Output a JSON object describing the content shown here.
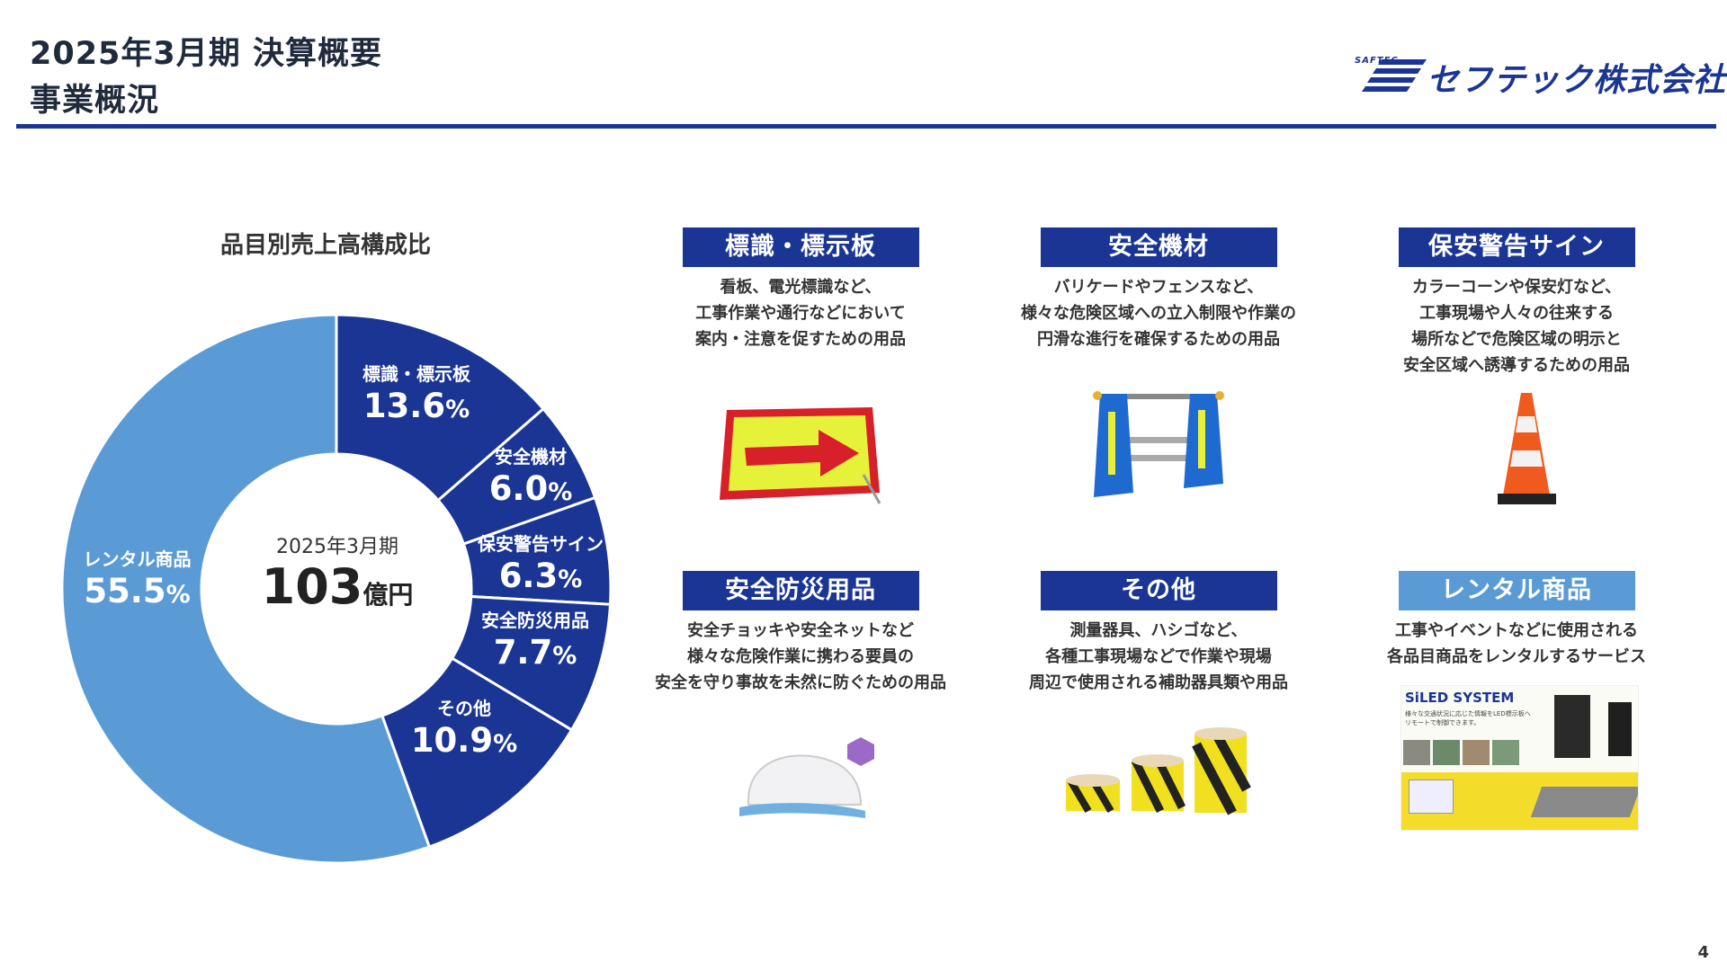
{
  "header": {
    "title_line1": "2025年3月期 決算概要",
    "title_line2": "事業概況",
    "logo_small": "SAFTEC",
    "logo_name": "セフテック株式会社"
  },
  "chart": {
    "title": "品目別売上高構成比",
    "center_period": "2025年3月期",
    "center_amount": "103",
    "center_unit": "億円",
    "labels": [
      {
        "name": "標識・標示板",
        "value": "13.6",
        "unit": "%"
      },
      {
        "name": "安全機材",
        "value": "6.0",
        "unit": "%"
      },
      {
        "name": "保安警告サイン",
        "value": "6.3",
        "unit": "%"
      },
      {
        "name": "安全防災用品",
        "value": "7.7",
        "unit": "%"
      },
      {
        "name": "その他",
        "value": "10.9",
        "unit": "%"
      },
      {
        "name": "レンタル商品",
        "value": "55.5",
        "unit": "%"
      }
    ]
  },
  "chart_data": {
    "type": "pie",
    "title": "品目別売上高構成比",
    "categories": [
      "標識・標示板",
      "安全機材",
      "保安警告サイン",
      "安全防災用品",
      "その他",
      "レンタル商品"
    ],
    "values": [
      13.6,
      6.0,
      6.3,
      7.7,
      10.9,
      55.5
    ],
    "colors": [
      "#1a3593",
      "#1a3593",
      "#1a3593",
      "#1a3593",
      "#1a3593",
      "#5b9bd5"
    ],
    "donut_center_text": [
      "2025年3月期",
      "103億円"
    ]
  },
  "categories": [
    {
      "title": "標識・標示板",
      "desc": [
        "看板、電光標識など、",
        "工事作業や通行などにおいて",
        "案内・注意を促すための用品"
      ],
      "icon": "arrow-sign-icon"
    },
    {
      "title": "安全機材",
      "desc": [
        "バリケードやフェンスなど、",
        "様々な危険区域への立入制限や作業の",
        "円滑な進行を確保するための用品"
      ],
      "icon": "barricade-icon"
    },
    {
      "title": "保安警告サイン",
      "desc": [
        "カラーコーンや保安灯など、",
        "工事現場や人々の往来する",
        "場所などで危険区域の明示と",
        "安全区域へ誘導するための用品"
      ],
      "icon": "traffic-cone-icon"
    },
    {
      "title": "安全防災用品",
      "desc": [
        "安全チョッキや安全ネットなど",
        "様々な危険作業に携わる要員の",
        "安全を守り事故を未然に防ぐための用品"
      ],
      "icon": "helmet-icon"
    },
    {
      "title": "その他",
      "desc": [
        "測量器具、ハシゴなど、",
        "各種工事現場などで作業や現場",
        "周辺で使用される補助器具類や用品"
      ],
      "icon": "tape-rolls-icon"
    },
    {
      "title": "レンタル商品",
      "desc": [
        "工事やイベントなどに使用される",
        "各品目商品をレンタルするサービス"
      ],
      "icon": "siled-system-icon",
      "image_text": {
        "logo": "SiLED SYSTEM",
        "line1": "様々な交通状況に応じた情報をLED標示板へ",
        "line2": "リモートで制御できます。"
      }
    }
  ],
  "page_number": "4"
}
